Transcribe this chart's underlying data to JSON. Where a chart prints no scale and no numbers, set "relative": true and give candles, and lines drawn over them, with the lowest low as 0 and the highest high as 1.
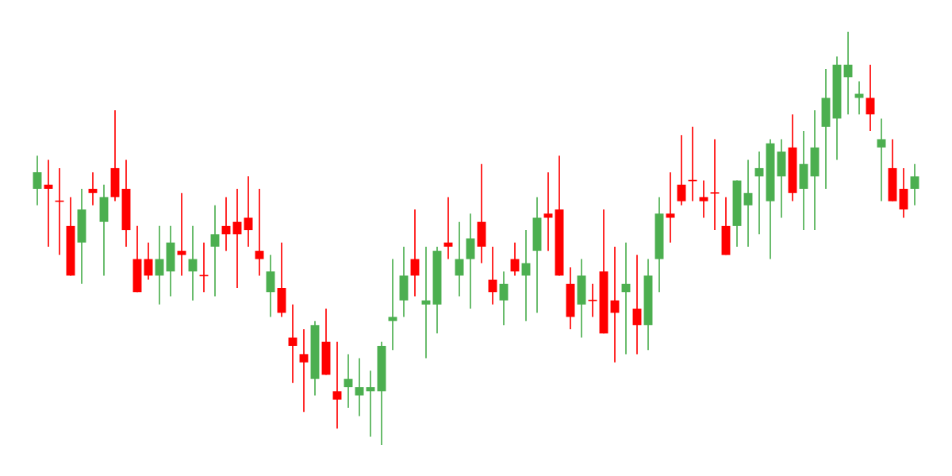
{
  "chart_data": {
    "type": "candlestick",
    "relative": true,
    "categories": [
      null,
      null,
      null,
      null,
      null,
      null,
      null,
      null,
      null,
      null,
      null,
      null,
      null,
      null,
      null,
      null,
      null,
      null,
      null,
      null,
      null,
      null,
      null,
      null,
      null,
      null,
      null,
      null,
      null,
      null,
      null,
      null,
      null,
      null,
      null,
      null,
      null,
      null,
      null,
      null,
      null,
      null,
      null,
      null,
      null,
      null,
      null,
      null,
      null,
      null,
      null,
      null,
      null,
      null,
      null,
      null,
      null,
      null,
      null,
      null,
      null,
      null,
      null,
      null,
      null,
      null,
      null,
      null,
      null,
      null,
      null,
      null,
      null,
      null,
      null,
      null,
      null,
      null,
      null,
      null
    ],
    "ohlc": [
      [
        0.62,
        0.7,
        0.58,
        0.66
      ],
      [
        0.63,
        0.69,
        0.48,
        0.62
      ],
      [
        0.59,
        0.67,
        0.46,
        0.59
      ],
      [
        0.53,
        0.6,
        0.41,
        0.41
      ],
      [
        0.49,
        0.62,
        0.39,
        0.57
      ],
      [
        0.62,
        0.66,
        0.58,
        0.61
      ],
      [
        0.54,
        0.63,
        0.41,
        0.6
      ],
      [
        0.67,
        0.81,
        0.59,
        0.6
      ],
      [
        0.62,
        0.69,
        0.48,
        0.52
      ],
      [
        0.45,
        0.53,
        0.37,
        0.37
      ],
      [
        0.45,
        0.49,
        0.4,
        0.41
      ],
      [
        0.41,
        0.53,
        0.34,
        0.45
      ],
      [
        0.42,
        0.53,
        0.36,
        0.49
      ],
      [
        0.47,
        0.61,
        0.41,
        0.46
      ],
      [
        0.42,
        0.53,
        0.35,
        0.45
      ],
      [
        0.41,
        0.49,
        0.37,
        0.41
      ],
      [
        0.48,
        0.58,
        0.36,
        0.51
      ],
      [
        0.53,
        0.6,
        0.47,
        0.51
      ],
      [
        0.54,
        0.62,
        0.38,
        0.51
      ],
      [
        0.55,
        0.65,
        0.48,
        0.52
      ],
      [
        0.47,
        0.62,
        0.41,
        0.45
      ],
      [
        0.37,
        0.46,
        0.31,
        0.42
      ],
      [
        0.38,
        0.49,
        0.31,
        0.32
      ],
      [
        0.26,
        0.34,
        0.15,
        0.24
      ],
      [
        0.22,
        0.28,
        0.08,
        0.2
      ],
      [
        0.16,
        0.3,
        0.12,
        0.29
      ],
      [
        0.25,
        0.33,
        0.17,
        0.17
      ],
      [
        0.13,
        0.25,
        0.04,
        0.11
      ],
      [
        0.14,
        0.22,
        0.09,
        0.16
      ],
      [
        0.12,
        0.21,
        0.07,
        0.14
      ],
      [
        0.13,
        0.18,
        0.02,
        0.14
      ],
      [
        0.13,
        0.25,
        0,
        0.24
      ],
      [
        0.3,
        0.45,
        0.23,
        0.31
      ],
      [
        0.35,
        0.48,
        0.31,
        0.41
      ],
      [
        0.45,
        0.57,
        0.36,
        0.41
      ],
      [
        0.34,
        0.48,
        0.21,
        0.35
      ],
      [
        0.34,
        0.48,
        0.27,
        0.47
      ],
      [
        0.49,
        0.6,
        0.45,
        0.48
      ],
      [
        0.41,
        0.54,
        0.36,
        0.45
      ],
      [
        0.45,
        0.56,
        0.33,
        0.5
      ],
      [
        0.54,
        0.68,
        0.44,
        0.48
      ],
      [
        0.4,
        0.48,
        0.34,
        0.37
      ],
      [
        0.35,
        0.42,
        0.29,
        0.39
      ],
      [
        0.45,
        0.49,
        0.41,
        0.42
      ],
      [
        0.41,
        0.52,
        0.3,
        0.44
      ],
      [
        0.47,
        0.6,
        0.32,
        0.55
      ],
      [
        0.56,
        0.66,
        0.47,
        0.55
      ],
      [
        0.57,
        0.7,
        0.41,
        0.41
      ],
      [
        0.39,
        0.43,
        0.28,
        0.31
      ],
      [
        0.34,
        0.45,
        0.26,
        0.41
      ],
      [
        0.35,
        0.39,
        0.31,
        0.35
      ],
      [
        0.42,
        0.57,
        0.27,
        0.27
      ],
      [
        0.35,
        0.48,
        0.2,
        0.32
      ],
      [
        0.37,
        0.49,
        0.22,
        0.39
      ],
      [
        0.33,
        0.46,
        0.22,
        0.29
      ],
      [
        0.29,
        0.45,
        0.23,
        0.41
      ],
      [
        0.45,
        0.6,
        0.37,
        0.56
      ],
      [
        0.56,
        0.66,
        0.49,
        0.55
      ],
      [
        0.63,
        0.75,
        0.58,
        0.59
      ],
      [
        0.64,
        0.77,
        0.59,
        0.64
      ],
      [
        0.6,
        0.64,
        0.55,
        0.59
      ],
      [
        0.61,
        0.74,
        0.52,
        0.61
      ],
      [
        0.53,
        0.6,
        0.46,
        0.46
      ],
      [
        0.53,
        0.64,
        0.48,
        0.64
      ],
      [
        0.58,
        0.69,
        0.48,
        0.61
      ],
      [
        0.65,
        0.71,
        0.51,
        0.67
      ],
      [
        0.59,
        0.74,
        0.45,
        0.73
      ],
      [
        0.65,
        0.74,
        0.55,
        0.71
      ],
      [
        0.72,
        0.8,
        0.59,
        0.61
      ],
      [
        0.62,
        0.76,
        0.52,
        0.68
      ],
      [
        0.65,
        0.81,
        0.52,
        0.72
      ],
      [
        0.77,
        0.91,
        0.62,
        0.84
      ],
      [
        0.79,
        0.94,
        0.69,
        0.92
      ],
      [
        0.89,
        1,
        0.8,
        0.92
      ],
      [
        0.84,
        0.88,
        0.8,
        0.85
      ],
      [
        0.84,
        0.92,
        0.76,
        0.8
      ],
      [
        0.72,
        0.79,
        0.59,
        0.74
      ],
      [
        0.67,
        0.74,
        0.59,
        0.59
      ],
      [
        0.62,
        0.67,
        0.55,
        0.57
      ],
      [
        0.62,
        0.68,
        0.58,
        0.65
      ]
    ],
    "colors": [
      "#4caf50",
      "#ff0000",
      "#ff0000",
      "#ff0000",
      "#4caf50",
      "#ff0000",
      "#4caf50",
      "#ff0000",
      "#ff0000",
      "#ff0000",
      "#ff0000",
      "#4caf50",
      "#4caf50",
      "#ff0000",
      "#4caf50",
      "#ff0000",
      "#4caf50",
      "#ff0000",
      "#ff0000",
      "#ff0000",
      "#ff0000",
      "#4caf50",
      "#ff0000",
      "#ff0000",
      "#ff0000",
      "#4caf50",
      "#ff0000",
      "#ff0000",
      "#4caf50",
      "#4caf50",
      "#4caf50",
      "#4caf50",
      "#4caf50",
      "#4caf50",
      "#ff0000",
      "#4caf50",
      "#4caf50",
      "#ff0000",
      "#4caf50",
      "#4caf50",
      "#ff0000",
      "#ff0000",
      "#4caf50",
      "#ff0000",
      "#4caf50",
      "#4caf50",
      "#ff0000",
      "#ff0000",
      "#ff0000",
      "#4caf50",
      "#ff0000",
      "#ff0000",
      "#ff0000",
      "#4caf50",
      "#ff0000",
      "#4caf50",
      "#4caf50",
      "#ff0000",
      "#ff0000",
      "#ff0000",
      "#ff0000",
      "#ff0000",
      "#ff0000",
      "#4caf50",
      "#4caf50",
      "#4caf50",
      "#4caf50",
      "#4caf50",
      "#ff0000",
      "#4caf50",
      "#4caf50",
      "#4caf50",
      "#4caf50",
      "#4caf50",
      "#4caf50",
      "#ff0000",
      "#4caf50",
      "#ff0000",
      "#ff0000",
      "#4caf50"
    ]
  }
}
